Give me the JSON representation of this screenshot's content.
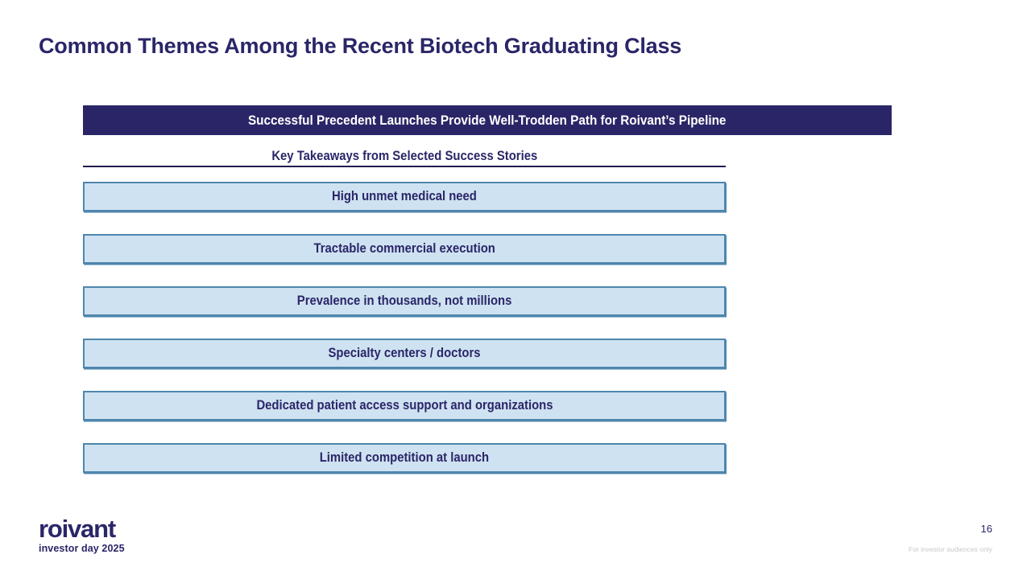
{
  "slide": {
    "title": "Common Themes Among the Recent Biotech Graduating Class",
    "banner": "Successful Precedent Launches Provide Well-Trodden Path for Roivant’s Pipeline",
    "subheading": "Key Takeaways from Selected Success Stories",
    "takeaways": [
      "High unmet medical need",
      "Tractable commercial execution",
      "Prevalence in thousands, not millions",
      "Specialty centers / doctors",
      "Dedicated patient access support and organizations",
      "Limited competition at launch"
    ],
    "footer": {
      "logo_text": "roivant",
      "logo_subtext": "investor day 2025",
      "page_number": "16",
      "disclaimer": "For investor audiences only"
    },
    "colors": {
      "navy_text": "#2a2668",
      "banner_background": "#2a2567",
      "box_fill": "#cfe2f1",
      "box_border": "#4e86ad",
      "underline": "#1f1b4e",
      "banner_text": "#ffffff",
      "disclaimer_gray": "#c9c9c9"
    }
  }
}
